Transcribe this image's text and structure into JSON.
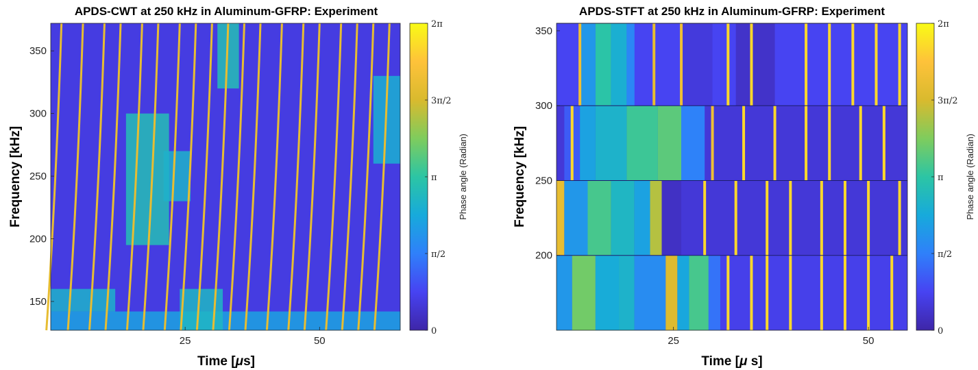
{
  "colormap": [
    "#3e26a8",
    "#4743f2",
    "#2f80fa",
    "#17aadb",
    "#2cc5a4",
    "#7fcc5d",
    "#d9ba2e",
    "#fec23a",
    "#f9fb15"
  ],
  "chart_data": [
    {
      "type": "heatmap",
      "title": "APDS-CWT at 250 kHz in Aluminum-GFRP: Experiment",
      "xlabel": "Time [",
      "xlabel_mu": "μ",
      "xlabel_end": "s]",
      "ylabel": "Frequency [kHz]",
      "xlim": [
        0,
        65
      ],
      "ylim": [
        127,
        372
      ],
      "xticks": [
        {
          "v": 25,
          "label": "25"
        },
        {
          "v": 50,
          "label": "50"
        }
      ],
      "yticks": [
        {
          "v": 150,
          "label": "150"
        },
        {
          "v": 200,
          "label": "200"
        },
        {
          "v": 250,
          "label": "250"
        },
        {
          "v": 300,
          "label": "300"
        },
        {
          "v": 350,
          "label": "350"
        }
      ],
      "background_value": 0.6,
      "wrap_lines": [
        {
          "x": 2,
          "value": 5.0
        },
        {
          "x": 6,
          "value": 5.0
        },
        {
          "x": 10,
          "value": 5.0
        },
        {
          "x": 13,
          "value": 5.0
        },
        {
          "x": 17,
          "value": 5.0
        },
        {
          "x": 20,
          "value": 5.0
        },
        {
          "x": 24,
          "value": 5.0
        },
        {
          "x": 27,
          "value": 5.0
        },
        {
          "x": 30,
          "value": 5.0
        },
        {
          "x": 33,
          "value": 5.0
        },
        {
          "x": 36,
          "value": 5.0
        },
        {
          "x": 39,
          "value": 5.0
        },
        {
          "x": 43,
          "value": 5.0
        },
        {
          "x": 47,
          "value": 5.0
        },
        {
          "x": 50,
          "value": 5.0
        },
        {
          "x": 54,
          "value": 5.0
        },
        {
          "x": 57,
          "value": 5.0
        },
        {
          "x": 60,
          "value": 5.0
        },
        {
          "x": 63,
          "value": 5.0
        }
      ],
      "patches": [
        {
          "x0": 0,
          "x1": 65,
          "y0": 127,
          "y1": 142,
          "value": 2.2
        },
        {
          "x0": 0,
          "x1": 12,
          "y0": 142,
          "y1": 160,
          "value": 2.6
        },
        {
          "x0": 14,
          "x1": 22,
          "y0": 195,
          "y1": 300,
          "value": 2.9
        },
        {
          "x0": 21,
          "x1": 26,
          "y0": 230,
          "y1": 270,
          "value": 2.6
        },
        {
          "x0": 31,
          "x1": 35,
          "y0": 320,
          "y1": 372,
          "value": 2.9
        },
        {
          "x0": 60,
          "x1": 65,
          "y0": 260,
          "y1": 330,
          "value": 2.5
        },
        {
          "x0": 24,
          "x1": 32,
          "y0": 127,
          "y1": 160,
          "value": 2.7
        }
      ],
      "colorbar": {
        "label": "Phase angle (Radian)",
        "range": [
          0,
          6.2832
        ],
        "ticks": [
          {
            "v": 0,
            "label": "0"
          },
          {
            "v": 1.5708,
            "label": "π/2"
          },
          {
            "v": 3.1416,
            "label": "π"
          },
          {
            "v": 4.7124,
            "label": "3π/2"
          },
          {
            "v": 6.2832,
            "label": "2π"
          }
        ]
      }
    },
    {
      "type": "heatmap",
      "title": "APDS-STFT at 250 kHz in Aluminum-GFRP: Experiment",
      "xlabel": "Time [",
      "xlabel_mu": "μ",
      "xlabel_end": " s]",
      "ylabel": "Frequency [kHz]",
      "xlim": [
        10,
        55
      ],
      "ylim": [
        150,
        355
      ],
      "xticks": [
        {
          "v": 25,
          "label": "25"
        },
        {
          "v": 50,
          "label": "50"
        }
      ],
      "yticks": [
        {
          "v": 200,
          "label": "200"
        },
        {
          "v": 250,
          "label": "250"
        },
        {
          "v": 300,
          "label": "300"
        },
        {
          "v": 350,
          "label": "350"
        }
      ],
      "rows": [
        {
          "y0": 300,
          "y1": 355,
          "base": 0.8,
          "segments": [
            {
              "x0": 13,
              "x1": 15,
              "value": 2.0
            },
            {
              "x0": 15,
              "x1": 17,
              "value": 3.1
            },
            {
              "x0": 17,
              "x1": 19,
              "value": 2.5
            },
            {
              "x0": 19,
              "x1": 20,
              "value": 1.7
            },
            {
              "x0": 33,
              "x1": 38,
              "value": 0.35
            },
            {
              "x0": 26,
              "x1": 30,
              "value": 0.55
            }
          ],
          "lines": [
            {
              "x": 13,
              "value": 5.2
            },
            {
              "x": 22.5,
              "value": 5.0
            },
            {
              "x": 26,
              "value": 5.2
            },
            {
              "x": 32,
              "value": 5.8
            },
            {
              "x": 35,
              "value": 5.8
            },
            {
              "x": 42,
              "value": 5.8
            },
            {
              "x": 45,
              "value": 5.8
            },
            {
              "x": 48,
              "value": 5.8
            },
            {
              "x": 51,
              "value": 5.8
            },
            {
              "x": 54,
              "value": 5.8
            }
          ]
        },
        {
          "y0": 250,
          "y1": 300,
          "base": 0.5,
          "segments": [
            {
              "x0": 10,
              "x1": 11,
              "value": 0.5
            },
            {
              "x0": 11,
              "x1": 13,
              "value": 1.1
            },
            {
              "x0": 13,
              "x1": 15,
              "value": 2.2
            },
            {
              "x0": 15,
              "x1": 19,
              "value": 2.6
            },
            {
              "x0": 19,
              "x1": 23,
              "value": 3.3
            },
            {
              "x0": 23,
              "x1": 26,
              "value": 3.6
            },
            {
              "x0": 26,
              "x1": 29,
              "value": 1.6
            }
          ],
          "lines": [
            {
              "x": 12,
              "value": 5.8
            },
            {
              "x": 30,
              "value": 5.2
            },
            {
              "x": 34,
              "value": 5.8
            },
            {
              "x": 38,
              "value": 5.8
            },
            {
              "x": 42,
              "value": 5.8
            },
            {
              "x": 45,
              "value": 5.8
            },
            {
              "x": 49,
              "value": 5.8
            },
            {
              "x": 52,
              "value": 5.8
            }
          ]
        },
        {
          "y0": 200,
          "y1": 250,
          "base": 0.5,
          "segments": [
            {
              "x0": 10,
              "x1": 11,
              "value": 5.0
            },
            {
              "x0": 11,
              "x1": 14,
              "value": 2.0
            },
            {
              "x0": 14,
              "x1": 17,
              "value": 3.4
            },
            {
              "x0": 17,
              "x1": 20,
              "value": 2.7
            },
            {
              "x0": 20,
              "x1": 22,
              "value": 2.2
            },
            {
              "x0": 22,
              "x1": 23.5,
              "value": 4.4
            },
            {
              "x0": 23.5,
              "x1": 26,
              "value": 0.3
            }
          ],
          "lines": [
            {
              "x": 29,
              "value": 5.8
            },
            {
              "x": 33,
              "value": 5.8
            },
            {
              "x": 37,
              "value": 5.8
            },
            {
              "x": 40,
              "value": 5.8
            },
            {
              "x": 44,
              "value": 5.8
            },
            {
              "x": 47,
              "value": 5.8
            },
            {
              "x": 50,
              "value": 5.8
            },
            {
              "x": 54,
              "value": 5.8
            }
          ]
        },
        {
          "y0": 150,
          "y1": 200,
          "base": 0.7,
          "segments": [
            {
              "x0": 10,
              "x1": 12,
              "value": 2.0
            },
            {
              "x0": 12,
              "x1": 15,
              "value": 3.8
            },
            {
              "x0": 15,
              "x1": 18,
              "value": 2.4
            },
            {
              "x0": 18,
              "x1": 20,
              "value": 2.6
            },
            {
              "x0": 20,
              "x1": 24,
              "value": 1.8
            },
            {
              "x0": 24,
              "x1": 25.5,
              "value": 4.8
            },
            {
              "x0": 25.5,
              "x1": 27,
              "value": 2.3
            },
            {
              "x0": 27,
              "x1": 29.5,
              "value": 3.4
            },
            {
              "x0": 29.5,
              "x1": 31,
              "value": 1.4
            }
          ],
          "lines": [
            {
              "x": 32,
              "value": 5.8
            },
            {
              "x": 35,
              "value": 5.8
            },
            {
              "x": 37,
              "value": 5.8
            },
            {
              "x": 40,
              "value": 5.8
            },
            {
              "x": 44,
              "value": 5.8
            },
            {
              "x": 47,
              "value": 5.8
            },
            {
              "x": 50,
              "value": 5.8
            },
            {
              "x": 53,
              "value": 5.8
            }
          ]
        }
      ],
      "colorbar": {
        "label": "Phase angle (Radian)",
        "range": [
          0,
          6.2832
        ],
        "ticks": [
          {
            "v": 0,
            "label": "0"
          },
          {
            "v": 1.5708,
            "label": "π/2"
          },
          {
            "v": 3.1416,
            "label": "π"
          },
          {
            "v": 4.7124,
            "label": "3π/2"
          },
          {
            "v": 6.2832,
            "label": "2π"
          }
        ]
      }
    }
  ]
}
